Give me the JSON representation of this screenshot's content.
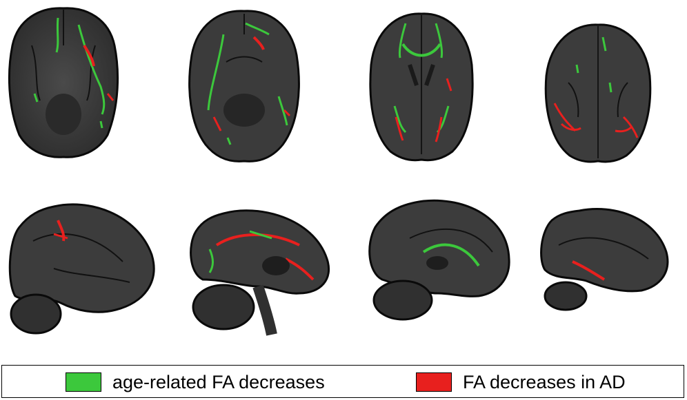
{
  "figure": {
    "axial_slices": [
      {
        "id": "axial-1"
      },
      {
        "id": "axial-2"
      },
      {
        "id": "axial-3"
      },
      {
        "id": "axial-4"
      }
    ],
    "sagittal_slices": [
      {
        "id": "sagittal-1"
      },
      {
        "id": "sagittal-2"
      },
      {
        "id": "sagittal-3"
      },
      {
        "id": "sagittal-4"
      }
    ]
  },
  "legend": {
    "items": [
      {
        "label": "age-related FA decreases",
        "color": "#3cc83c"
      },
      {
        "label": "FA decreases in AD",
        "color": "#e8201e"
      }
    ]
  },
  "colors": {
    "brain_tissue": "#3a3a3a",
    "brain_outline": "#0a0a0a",
    "white_matter_tract": "#111111",
    "age_related": "#3cc83c",
    "alzheimers": "#e8201e"
  }
}
